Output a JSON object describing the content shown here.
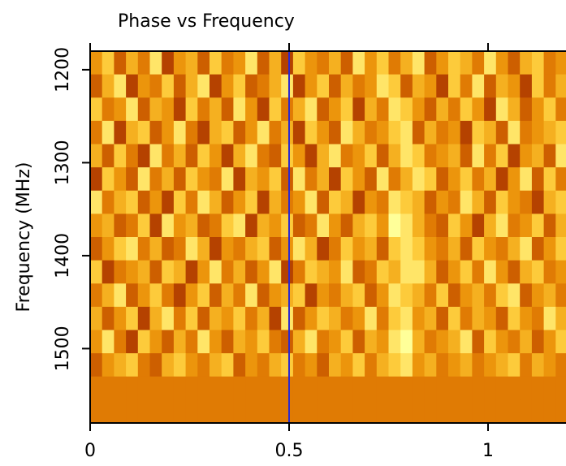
{
  "chart_data": {
    "type": "heatmap",
    "title": "Phase vs Frequency",
    "y_label": "Frequency (MHz)",
    "xlim": [
      0,
      1.2
    ],
    "xticks": [
      0,
      0.5,
      1
    ],
    "ylim": [
      1180,
      1580
    ],
    "yticks": [
      1200,
      1300,
      1400,
      1500
    ],
    "y_inverted": true,
    "x_bins": [
      0,
      0.03,
      0.06,
      0.09,
      0.12,
      0.15,
      0.18,
      0.21,
      0.24,
      0.27,
      0.3,
      0.33,
      0.36,
      0.39,
      0.42,
      0.45,
      0.48,
      0.51,
      0.54,
      0.57,
      0.6,
      0.63,
      0.66,
      0.69,
      0.72,
      0.75,
      0.78,
      0.81,
      0.84,
      0.87,
      0.9,
      0.93,
      0.96,
      0.99,
      1.02,
      1.05,
      1.08,
      1.11,
      1.14,
      1.17,
      1.2
    ],
    "y_bins": [
      1180,
      1205,
      1230,
      1255,
      1280,
      1305,
      1330,
      1355,
      1380,
      1405,
      1430,
      1455,
      1480,
      1505,
      1530,
      1555,
      1580
    ],
    "zlim": [
      0,
      9
    ],
    "colormap": [
      "#6b1800",
      "#b03c00",
      "#dc7000",
      "#f0a010",
      "#ffd040",
      "#ffff99"
    ],
    "vline": {
      "x": 0.5,
      "color": "#2a2ad0"
    },
    "z": [
      [
        5,
        7,
        3,
        6,
        4,
        8,
        2,
        5,
        6,
        3,
        7,
        4,
        5,
        8,
        3,
        6,
        2,
        7,
        5,
        4,
        6,
        3,
        8,
        5,
        7,
        4,
        6,
        8,
        3,
        5,
        7,
        6,
        4,
        8,
        5,
        3,
        6,
        7,
        4,
        5
      ],
      [
        3,
        6,
        8,
        2,
        5,
        4,
        7,
        3,
        6,
        8,
        2,
        5,
        7,
        3,
        4,
        6,
        8,
        2,
        5,
        7,
        3,
        6,
        4,
        5,
        8,
        7,
        3,
        6,
        5,
        2,
        7,
        4,
        8,
        3,
        6,
        5,
        2,
        7,
        4,
        6
      ],
      [
        7,
        4,
        5,
        8,
        3,
        6,
        5,
        2,
        7,
        4,
        6,
        3,
        8,
        5,
        2,
        7,
        4,
        6,
        8,
        3,
        5,
        7,
        2,
        6,
        4,
        8,
        7,
        5,
        3,
        6,
        4,
        7,
        5,
        2,
        8,
        6,
        3,
        5,
        7,
        4
      ],
      [
        4,
        8,
        2,
        6,
        7,
        3,
        5,
        8,
        4,
        2,
        6,
        7,
        3,
        5,
        8,
        4,
        6,
        2,
        7,
        5,
        3,
        8,
        6,
        4,
        5,
        7,
        8,
        3,
        6,
        4,
        5,
        2,
        7,
        6,
        3,
        8,
        4,
        5,
        6,
        7
      ],
      [
        6,
        3,
        7,
        4,
        2,
        8,
        4,
        6,
        3,
        7,
        5,
        2,
        6,
        8,
        4,
        3,
        7,
        5,
        2,
        6,
        8,
        4,
        5,
        7,
        3,
        6,
        8,
        7,
        4,
        5,
        6,
        3,
        8,
        4,
        7,
        2,
        5,
        6,
        3,
        8
      ],
      [
        2,
        7,
        5,
        3,
        8,
        4,
        6,
        3,
        7,
        5,
        4,
        8,
        2,
        6,
        5,
        7,
        3,
        8,
        4,
        6,
        2,
        7,
        5,
        3,
        8,
        4,
        6,
        8,
        7,
        3,
        5,
        7,
        4,
        6,
        2,
        5,
        8,
        3,
        7,
        4
      ],
      [
        8,
        4,
        6,
        7,
        3,
        5,
        2,
        7,
        4,
        8,
        6,
        3,
        5,
        7,
        2,
        6,
        4,
        5,
        8,
        3,
        7,
        6,
        2,
        5,
        4,
        8,
        7,
        6,
        3,
        5,
        4,
        8,
        6,
        3,
        7,
        5,
        4,
        2,
        6,
        7
      ],
      [
        5,
        6,
        3,
        4,
        7,
        2,
        8,
        5,
        6,
        3,
        4,
        7,
        8,
        2,
        6,
        5,
        7,
        3,
        4,
        8,
        5,
        3,
        6,
        7,
        5,
        9,
        8,
        6,
        4,
        3,
        7,
        5,
        2,
        6,
        8,
        4,
        5,
        7,
        3,
        6
      ],
      [
        3,
        5,
        7,
        8,
        4,
        6,
        3,
        4,
        8,
        6,
        2,
        5,
        4,
        6,
        7,
        3,
        5,
        8,
        6,
        2,
        4,
        7,
        5,
        6,
        3,
        7,
        8,
        7,
        5,
        4,
        6,
        3,
        7,
        5,
        4,
        6,
        8,
        3,
        5,
        7
      ],
      [
        7,
        2,
        4,
        5,
        6,
        3,
        7,
        6,
        2,
        5,
        8,
        4,
        6,
        3,
        5,
        8,
        2,
        4,
        7,
        6,
        5,
        8,
        3,
        4,
        7,
        6,
        8,
        8,
        6,
        3,
        5,
        7,
        4,
        8,
        5,
        3,
        6,
        7,
        4,
        5
      ],
      [
        4,
        6,
        8,
        3,
        5,
        7,
        4,
        2,
        5,
        7,
        3,
        6,
        4,
        8,
        3,
        5,
        6,
        7,
        2,
        5,
        4,
        6,
        7,
        3,
        5,
        8,
        7,
        6,
        4,
        7,
        3,
        5,
        6,
        4,
        7,
        8,
        3,
        5,
        6,
        4
      ],
      [
        6,
        3,
        5,
        7,
        2,
        6,
        8,
        4,
        7,
        3,
        6,
        5,
        7,
        4,
        6,
        2,
        8,
        3,
        5,
        7,
        6,
        4,
        5,
        8,
        4,
        7,
        8,
        5,
        6,
        3,
        7,
        4,
        6,
        5,
        3,
        7,
        5,
        4,
        8,
        6
      ],
      [
        5,
        8,
        4,
        2,
        7,
        5,
        3,
        6,
        4,
        8,
        5,
        3,
        6,
        5,
        7,
        4,
        3,
        6,
        8,
        4,
        5,
        7,
        3,
        6,
        5,
        8,
        9,
        6,
        4,
        5,
        6,
        8,
        3,
        7,
        5,
        4,
        6,
        3,
        5,
        7
      ],
      [
        3,
        5,
        6,
        7,
        4,
        3,
        6,
        7,
        5,
        4,
        6,
        7,
        3,
        5,
        4,
        6,
        7,
        4,
        5,
        3,
        6,
        5,
        7,
        4,
        6,
        7,
        8,
        5,
        6,
        4,
        5,
        6,
        4,
        5,
        6,
        7,
        4,
        6,
        5,
        4
      ],
      [
        4,
        4,
        4,
        4,
        4,
        4,
        4,
        4,
        4,
        4,
        4,
        4,
        4,
        4,
        4,
        4,
        4,
        4,
        4,
        4,
        4,
        4,
        4,
        4,
        4,
        4,
        4,
        4,
        4,
        4,
        4,
        4,
        4,
        4,
        4,
        4,
        4,
        4,
        4,
        4
      ],
      [
        4,
        4,
        4,
        4,
        4,
        4,
        4,
        4,
        4,
        4,
        4,
        4,
        4,
        4,
        4,
        4,
        4,
        4,
        4,
        4,
        4,
        4,
        4,
        4,
        4,
        4,
        4,
        4,
        4,
        4,
        4,
        4,
        4,
        4,
        4,
        4,
        4,
        4,
        4,
        4
      ]
    ]
  }
}
